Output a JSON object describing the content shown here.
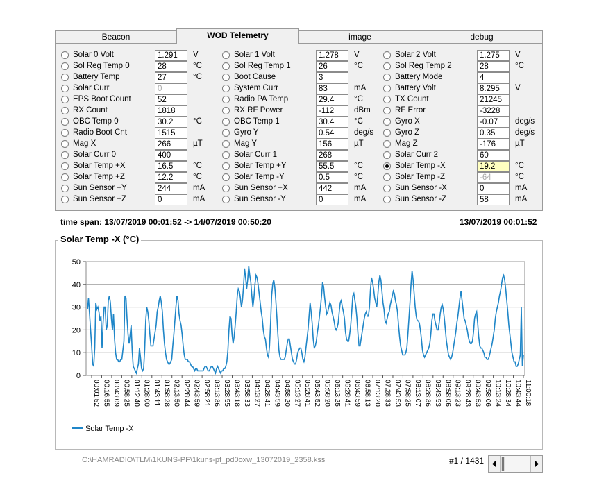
{
  "tabs": [
    {
      "label": "Beacon",
      "active": false
    },
    {
      "label": "WOD Telemetry",
      "active": true
    },
    {
      "label": "image",
      "active": false
    },
    {
      "label": "debug",
      "active": false
    }
  ],
  "columns": [
    [
      {
        "label": "Solar 0 Volt",
        "value": "1.291",
        "unit": "V"
      },
      {
        "label": "Sol Reg Temp 0",
        "value": "28",
        "unit": "°C"
      },
      {
        "label": "Battery Temp",
        "value": "27",
        "unit": "°C"
      },
      {
        "label": "Solar Curr",
        "value": "0",
        "unit": "",
        "dim": true
      },
      {
        "label": "EPS Boot Count",
        "value": "52",
        "unit": ""
      },
      {
        "label": "RX Count",
        "value": "1818",
        "unit": ""
      },
      {
        "label": "OBC Temp 0",
        "value": "30.2",
        "unit": "°C"
      },
      {
        "label": "Radio Boot Cnt",
        "value": "1515",
        "unit": ""
      },
      {
        "label": "Mag X",
        "value": "266",
        "unit": "µT"
      },
      {
        "label": "Solar Curr 0",
        "value": "400",
        "unit": ""
      },
      {
        "label": "Solar Temp +X",
        "value": "16.5",
        "unit": "°C"
      },
      {
        "label": "Solar Temp +Z",
        "value": "12.2",
        "unit": "°C"
      },
      {
        "label": "Sun Sensor +Y",
        "value": "244",
        "unit": "mA"
      },
      {
        "label": "Sun Sensor +Z",
        "value": "0",
        "unit": "mA"
      }
    ],
    [
      {
        "label": "Solar 1 Volt",
        "value": "1.278",
        "unit": "V"
      },
      {
        "label": "Sol Reg Temp 1",
        "value": "26",
        "unit": "°C"
      },
      {
        "label": "Boot Cause",
        "value": "3",
        "unit": ""
      },
      {
        "label": "System Curr",
        "value": "83",
        "unit": "mA"
      },
      {
        "label": "Radio PA Temp",
        "value": "29.4",
        "unit": "°C"
      },
      {
        "label": "RX RF Power",
        "value": "-112",
        "unit": "dBm"
      },
      {
        "label": "OBC Temp 1",
        "value": "30.4",
        "unit": "°C"
      },
      {
        "label": "Gyro Y",
        "value": "0.54",
        "unit": "deg/s"
      },
      {
        "label": "Mag Y",
        "value": "156",
        "unit": "µT"
      },
      {
        "label": "Solar Curr 1",
        "value": "268",
        "unit": ""
      },
      {
        "label": "Solar Temp +Y",
        "value": "55.5",
        "unit": "°C"
      },
      {
        "label": "Solar Temp -Y",
        "value": "0.5",
        "unit": "°C"
      },
      {
        "label": "Sun Sensor +X",
        "value": "442",
        "unit": "mA"
      },
      {
        "label": "Sun Sensor -Y",
        "value": "0",
        "unit": "mA"
      }
    ],
    [
      {
        "label": "Solar 2 Volt",
        "value": "1.275",
        "unit": "V"
      },
      {
        "label": "Sol Reg Temp 2",
        "value": "28",
        "unit": "°C"
      },
      {
        "label": "Battery Mode",
        "value": "4",
        "unit": ""
      },
      {
        "label": "Battery Volt",
        "value": "8.295",
        "unit": "V"
      },
      {
        "label": "TX Count",
        "value": "21245",
        "unit": ""
      },
      {
        "label": "RF Error",
        "value": "-3228",
        "unit": ""
      },
      {
        "label": "Gyro X",
        "value": "-0.07",
        "unit": "deg/s"
      },
      {
        "label": "Gyro Z",
        "value": "0.35",
        "unit": "deg/s"
      },
      {
        "label": "Mag Z",
        "value": "-176",
        "unit": "µT"
      },
      {
        "label": "Solar Curr 2",
        "value": "60",
        "unit": ""
      },
      {
        "label": "Solar Temp -X",
        "value": "19.2",
        "unit": "°C",
        "checked": true,
        "highlight": true
      },
      {
        "label": "Solar Temp -Z",
        "value": "-64",
        "unit": "°C",
        "dim": true
      },
      {
        "label": "Sun Sensor -X",
        "value": "0",
        "unit": "mA"
      },
      {
        "label": "Sun Sensor -Z",
        "value": "58",
        "unit": "mA"
      }
    ]
  ],
  "timespan": {
    "left": "time span: 13/07/2019 00:01:52 -> 14/07/2019 00:50:20",
    "right": "13/07/2019 00:01:52"
  },
  "chart_title": "Solar Temp -X (°C)",
  "footer": {
    "file_path": "C:\\HAMRADIO\\TLM\\1KUNS-PF\\1kuns-pf_pd0oxw_13072019_2358.kss",
    "record": "#1 / 1431"
  },
  "scroll_icons": {
    "left": "arrow-left-icon",
    "right": "arrow-right-icon"
  },
  "colors": {
    "series": "#1f86c8",
    "highlight": "#ffffc0"
  },
  "chart_data": {
    "type": "line",
    "title": "Solar Temp -X (°C)",
    "ylim": [
      0,
      50
    ],
    "yticks": [
      0,
      10,
      20,
      30,
      40,
      50
    ],
    "grid": true,
    "legend": "bottom-left",
    "xtick_labels": [
      "00:01:52",
      "00:16:55",
      "00:43:09",
      "00:58:25",
      "01:12:40",
      "01:28:00",
      "01:43:11",
      "01:58:28",
      "02:13:50",
      "02:28:44",
      "02:43:59",
      "02:58:21",
      "03:13:36",
      "03:28:55",
      "03:43:18",
      "03:58:33",
      "04:13:27",
      "04:28:41",
      "04:43:59",
      "04:58:20",
      "05:13:27",
      "05:28:41",
      "05:43:52",
      "05:58:20",
      "06:13:25",
      "06:28:41",
      "06:43:59",
      "06:58:13",
      "07:13:20",
      "07:28:33",
      "07:43:53",
      "07:58:25",
      "08:13:07",
      "08:28:36",
      "08:43:53",
      "08:58:06",
      "09:13:23",
      "09:28:43",
      "09:43:53",
      "09:58:06",
      "10:13:24",
      "10:28:34",
      "10:43:44",
      "11:00:18"
    ],
    "series": [
      {
        "name": "Solar Temp -X",
        "values": [
          29,
          34,
          27,
          20,
          13,
          5,
          4,
          12,
          32,
          29,
          30,
          28,
          24,
          26,
          12,
          23,
          30,
          30,
          20,
          22,
          33,
          35,
          32,
          25,
          20,
          27,
          16,
          10,
          7,
          7,
          6,
          6,
          7,
          7,
          11,
          15,
          35,
          34,
          25,
          18,
          14,
          18,
          22,
          11,
          4,
          3,
          2,
          1,
          3,
          5,
          12,
          8,
          3,
          2,
          3,
          11,
          24,
          30,
          28,
          24,
          18,
          13,
          13,
          13,
          16,
          19,
          22,
          28,
          30,
          33,
          35,
          32,
          28,
          20,
          14,
          10,
          7,
          6,
          5,
          5,
          6,
          7,
          13,
          18,
          24,
          30,
          35,
          33,
          27,
          24,
          22,
          18,
          13,
          9,
          7,
          7,
          7,
          6,
          6,
          5,
          4,
          4,
          3,
          2,
          3,
          3,
          2,
          2,
          2,
          2,
          2,
          2,
          3,
          4,
          4,
          3,
          2,
          2,
          3,
          4,
          4,
          3,
          2,
          1,
          3,
          4,
          3,
          2,
          1,
          2,
          2,
          3,
          3,
          4,
          6,
          11,
          20,
          26,
          25,
          18,
          14,
          17,
          22,
          28,
          35,
          38,
          37,
          34,
          30,
          33,
          39,
          47,
          43,
          38,
          42,
          48,
          44,
          41,
          35,
          30,
          34,
          40,
          44,
          43,
          40,
          36,
          32,
          28,
          25,
          20,
          17,
          16,
          12,
          9,
          8,
          13,
          23,
          35,
          40,
          42,
          39,
          33,
          26,
          18,
          11,
          8,
          7,
          7,
          7,
          7,
          8,
          11,
          14,
          16,
          16,
          13,
          10,
          7,
          6,
          5,
          5,
          7,
          10,
          11,
          12,
          12,
          10,
          7,
          6,
          8,
          12,
          16,
          20,
          26,
          32,
          28,
          23,
          16,
          12,
          13,
          15,
          19,
          22,
          26,
          30,
          35,
          41,
          39,
          34,
          30,
          27,
          28,
          30,
          32,
          31,
          28,
          26,
          24,
          21,
          20,
          21,
          23,
          28,
          32,
          33,
          30,
          28,
          25,
          19,
          16,
          15,
          15,
          18,
          22,
          28,
          35,
          36,
          33,
          30,
          25,
          18,
          13,
          13,
          16,
          19,
          22,
          25,
          27,
          28,
          26,
          26,
          30,
          38,
          43,
          41,
          38,
          34,
          32,
          30,
          35,
          41,
          44,
          42,
          37,
          32,
          29,
          24,
          23,
          25,
          27,
          28,
          31,
          33,
          35,
          37,
          36,
          33,
          31,
          28,
          22,
          17,
          13,
          11,
          9,
          9,
          9,
          10,
          12,
          18,
          25,
          32,
          40,
          46,
          42,
          36,
          30,
          26,
          24,
          24,
          23,
          20,
          16,
          11,
          9,
          8,
          9,
          10,
          11,
          12,
          14,
          18,
          24,
          27,
          27,
          24,
          22,
          20,
          20,
          23,
          27,
          30,
          31,
          29,
          25,
          20,
          15,
          12,
          9,
          8,
          7,
          8,
          10,
          13,
          16,
          19,
          23,
          26,
          30,
          34,
          37,
          33,
          29,
          25,
          24,
          22,
          20,
          17,
          15,
          14,
          14,
          15,
          19,
          25,
          27,
          28,
          23,
          17,
          13,
          12,
          12,
          11,
          10,
          8,
          8,
          7,
          7,
          8,
          10,
          12,
          14,
          17,
          20,
          25,
          28,
          30,
          32,
          35,
          37,
          40,
          43,
          44,
          42,
          38,
          33,
          28,
          22,
          18,
          14,
          10,
          8,
          6,
          6,
          4,
          4,
          5,
          7,
          9,
          30,
          4,
          9
        ]
      }
    ]
  }
}
